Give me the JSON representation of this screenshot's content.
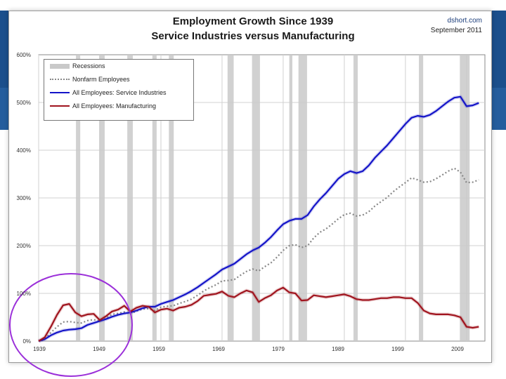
{
  "chart_data": {
    "type": "line",
    "title": "Employment Growth Since 1939",
    "subtitle": "Service Industries versus Manufacturing",
    "source": "dshort.com",
    "date": "September 2011",
    "xlabel": "",
    "ylabel": "",
    "xlim": [
      1939,
      2012
    ],
    "ylim": [
      0,
      600
    ],
    "y_ticks": [
      "0%",
      "100%",
      "200%",
      "300%",
      "400%",
      "500%",
      "600%"
    ],
    "x_ticks": [
      "1939",
      "1949",
      "1959",
      "1969",
      "1979",
      "1989",
      "1999",
      "2009"
    ],
    "legend": [
      "Recessions",
      "Nonfarm Employees",
      "All Employees: Service Industries",
      "All Employees: Manufacturing"
    ],
    "recessions": [
      [
        1945.1,
        1945.8
      ],
      [
        1948.9,
        1949.8
      ],
      [
        1953.5,
        1954.4
      ],
      [
        1957.6,
        1958.3
      ],
      [
        1960.3,
        1961.1
      ],
      [
        1969.9,
        1970.9
      ],
      [
        1973.9,
        1975.2
      ],
      [
        1980.0,
        1980.5
      ],
      [
        1981.5,
        1982.9
      ],
      [
        1990.5,
        1991.2
      ],
      [
        2001.2,
        2001.9
      ],
      [
        2007.9,
        2009.5
      ]
    ],
    "series": [
      {
        "name": "Nonfarm Employees",
        "color": "#888888",
        "x": [
          1939,
          1940,
          1941,
          1942,
          1943,
          1944,
          1945,
          1946,
          1947,
          1948,
          1949,
          1950,
          1951,
          1952,
          1953,
          1954,
          1955,
          1956,
          1957,
          1958,
          1959,
          1960,
          1961,
          1962,
          1963,
          1964,
          1965,
          1966,
          1967,
          1968,
          1969,
          1970,
          1971,
          1972,
          1973,
          1974,
          1975,
          1976,
          1977,
          1978,
          1979,
          1980,
          1981,
          1982,
          1983,
          1984,
          1985,
          1986,
          1987,
          1988,
          1989,
          1990,
          1991,
          1992,
          1993,
          1994,
          1995,
          1996,
          1997,
          1998,
          1999,
          2000,
          2001,
          2002,
          2003,
          2004,
          2005,
          2006,
          2007,
          2008,
          2009,
          2010,
          2011
        ],
        "values": [
          0,
          4,
          18,
          30,
          40,
          41,
          39,
          38,
          43,
          45,
          42,
          48,
          56,
          58,
          61,
          57,
          63,
          67,
          68,
          64,
          71,
          73,
          74,
          79,
          83,
          88,
          96,
          105,
          112,
          118,
          126,
          127,
          129,
          138,
          146,
          151,
          147,
          156,
          164,
          176,
          190,
          200,
          202,
          196,
          200,
          216,
          228,
          235,
          245,
          256,
          265,
          268,
          262,
          264,
          271,
          283,
          292,
          301,
          313,
          323,
          332,
          342,
          338,
          333,
          334,
          340,
          348,
          356,
          362,
          354,
          332,
          333,
          338
        ]
      },
      {
        "name": "All Employees: Service Industries",
        "color": "#1414c8",
        "x": [
          1939,
          1940,
          1941,
          1942,
          1943,
          1944,
          1945,
          1946,
          1947,
          1948,
          1949,
          1950,
          1951,
          1952,
          1953,
          1954,
          1955,
          1956,
          1957,
          1958,
          1959,
          1960,
          1961,
          1962,
          1963,
          1964,
          1965,
          1966,
          1967,
          1968,
          1969,
          1970,
          1971,
          1972,
          1973,
          1974,
          1975,
          1976,
          1977,
          1978,
          1979,
          1980,
          1981,
          1982,
          1983,
          1984,
          1985,
          1986,
          1987,
          1988,
          1989,
          1990,
          1991,
          1992,
          1993,
          1994,
          1995,
          1996,
          1997,
          1998,
          1999,
          2000,
          2001,
          2002,
          2003,
          2004,
          2005,
          2006,
          2007,
          2008,
          2009,
          2010,
          2011
        ],
        "values": [
          0,
          4,
          12,
          18,
          22,
          24,
          25,
          27,
          34,
          38,
          42,
          46,
          51,
          55,
          58,
          60,
          64,
          69,
          72,
          72,
          78,
          82,
          86,
          92,
          98,
          105,
          113,
          122,
          131,
          140,
          150,
          156,
          162,
          172,
          182,
          190,
          196,
          206,
          218,
          232,
          245,
          252,
          256,
          256,
          264,
          282,
          297,
          310,
          325,
          340,
          350,
          356,
          352,
          356,
          368,
          384,
          397,
          410,
          425,
          440,
          455,
          468,
          472,
          470,
          474,
          482,
          492,
          502,
          510,
          512,
          492,
          494,
          499
        ]
      },
      {
        "name": "All Employees: Manufacturing",
        "color": "#a0141e",
        "x": [
          1939,
          1940,
          1941,
          1942,
          1943,
          1944,
          1945,
          1946,
          1947,
          1948,
          1949,
          1950,
          1951,
          1952,
          1953,
          1954,
          1955,
          1956,
          1957,
          1958,
          1959,
          1960,
          1961,
          1962,
          1963,
          1964,
          1965,
          1966,
          1967,
          1968,
          1969,
          1970,
          1971,
          1972,
          1973,
          1974,
          1975,
          1976,
          1977,
          1978,
          1979,
          1980,
          1981,
          1982,
          1983,
          1984,
          1985,
          1986,
          1987,
          1988,
          1989,
          1990,
          1991,
          1992,
          1993,
          1994,
          1995,
          1996,
          1997,
          1998,
          1999,
          2000,
          2001,
          2002,
          2003,
          2004,
          2005,
          2006,
          2007,
          2008,
          2009,
          2010,
          2011
        ],
        "values": [
          0,
          8,
          30,
          55,
          75,
          78,
          60,
          52,
          56,
          57,
          44,
          52,
          62,
          66,
          74,
          62,
          70,
          74,
          72,
          60,
          66,
          68,
          64,
          70,
          72,
          76,
          84,
          95,
          97,
          99,
          104,
          95,
          92,
          100,
          106,
          102,
          82,
          90,
          96,
          106,
          112,
          102,
          100,
          85,
          86,
          96,
          94,
          92,
          94,
          96,
          98,
          94,
          88,
          86,
          86,
          88,
          90,
          90,
          92,
          92,
          90,
          90,
          80,
          64,
          58,
          56,
          56,
          56,
          54,
          50,
          30,
          28,
          30
        ]
      }
    ]
  }
}
